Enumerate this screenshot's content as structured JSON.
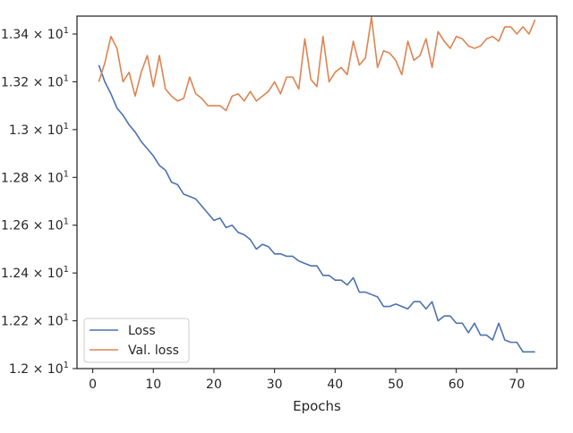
{
  "chart_data": {
    "type": "line",
    "title": "",
    "xlabel": "Epochs",
    "ylabel": "",
    "xlim": [
      -2.6,
      76.6
    ],
    "ylim": [
      12.0,
      13.475
    ],
    "grid": false,
    "legend_position": "lower-left",
    "x_ticks": [
      {
        "value": 0,
        "label": "0"
      },
      {
        "value": 10,
        "label": "10"
      },
      {
        "value": 20,
        "label": "20"
      },
      {
        "value": 30,
        "label": "30"
      },
      {
        "value": 40,
        "label": "40"
      },
      {
        "value": 50,
        "label": "50"
      },
      {
        "value": 60,
        "label": "60"
      },
      {
        "value": 70,
        "label": "70"
      }
    ],
    "y_ticks": [
      {
        "value": 12.0,
        "mantissa": "1.2",
        "exp": "1"
      },
      {
        "value": 12.2,
        "mantissa": "1.22",
        "exp": "1"
      },
      {
        "value": 12.4,
        "mantissa": "1.24",
        "exp": "1"
      },
      {
        "value": 12.6,
        "mantissa": "1.26",
        "exp": "1"
      },
      {
        "value": 12.8,
        "mantissa": "1.28",
        "exp": "1"
      },
      {
        "value": 13.0,
        "mantissa": "1.3",
        "exp": "1"
      },
      {
        "value": 13.2,
        "mantissa": "1.32",
        "exp": "1"
      },
      {
        "value": 13.4,
        "mantissa": "1.34",
        "exp": "1"
      }
    ],
    "y_tick_times": "×",
    "y_tick_base": "10",
    "x": [
      1,
      2,
      3,
      4,
      5,
      6,
      7,
      8,
      9,
      10,
      11,
      12,
      13,
      14,
      15,
      16,
      17,
      18,
      19,
      20,
      21,
      22,
      23,
      24,
      25,
      26,
      27,
      28,
      29,
      30,
      31,
      32,
      33,
      34,
      35,
      36,
      37,
      38,
      39,
      40,
      41,
      42,
      43,
      44,
      45,
      46,
      47,
      48,
      49,
      50,
      51,
      52,
      53,
      54,
      55,
      56,
      57,
      58,
      59,
      60,
      61,
      62,
      63,
      64,
      65,
      66,
      67,
      68,
      69,
      70,
      71,
      72,
      73
    ],
    "series": [
      {
        "name": "Loss",
        "color": "#4c72b0",
        "values": [
          13.27,
          13.2,
          13.15,
          13.09,
          13.06,
          13.02,
          12.99,
          12.95,
          12.92,
          12.89,
          12.85,
          12.83,
          12.78,
          12.77,
          12.73,
          12.72,
          12.71,
          12.68,
          12.65,
          12.62,
          12.63,
          12.59,
          12.6,
          12.57,
          12.56,
          12.54,
          12.5,
          12.52,
          12.51,
          12.48,
          12.48,
          12.47,
          12.47,
          12.45,
          12.44,
          12.43,
          12.43,
          12.39,
          12.39,
          12.37,
          12.37,
          12.35,
          12.38,
          12.32,
          12.32,
          12.31,
          12.3,
          12.26,
          12.26,
          12.27,
          12.26,
          12.25,
          12.28,
          12.28,
          12.25,
          12.28,
          12.2,
          12.22,
          12.22,
          12.19,
          12.19,
          12.15,
          12.19,
          12.14,
          12.14,
          12.12,
          12.19,
          12.12,
          12.11,
          12.11,
          12.07,
          12.07,
          12.07
        ]
      },
      {
        "name": "Val. loss",
        "color": "#dd8452",
        "values": [
          13.2,
          13.28,
          13.39,
          13.34,
          13.2,
          13.24,
          13.14,
          13.24,
          13.31,
          13.18,
          13.31,
          13.17,
          13.14,
          13.12,
          13.13,
          13.22,
          13.15,
          13.13,
          13.1,
          13.1,
          13.1,
          13.08,
          13.14,
          13.15,
          13.12,
          13.16,
          13.12,
          13.14,
          13.16,
          13.2,
          13.15,
          13.22,
          13.22,
          13.17,
          13.38,
          13.21,
          13.18,
          13.39,
          13.2,
          13.24,
          13.26,
          13.23,
          13.37,
          13.27,
          13.3,
          13.47,
          13.26,
          13.33,
          13.32,
          13.29,
          13.23,
          13.37,
          13.29,
          13.31,
          13.38,
          13.26,
          13.41,
          13.37,
          13.34,
          13.39,
          13.38,
          13.35,
          13.34,
          13.35,
          13.38,
          13.39,
          13.37,
          13.43,
          13.43,
          13.4,
          13.43,
          13.4,
          13.46
        ]
      }
    ]
  }
}
